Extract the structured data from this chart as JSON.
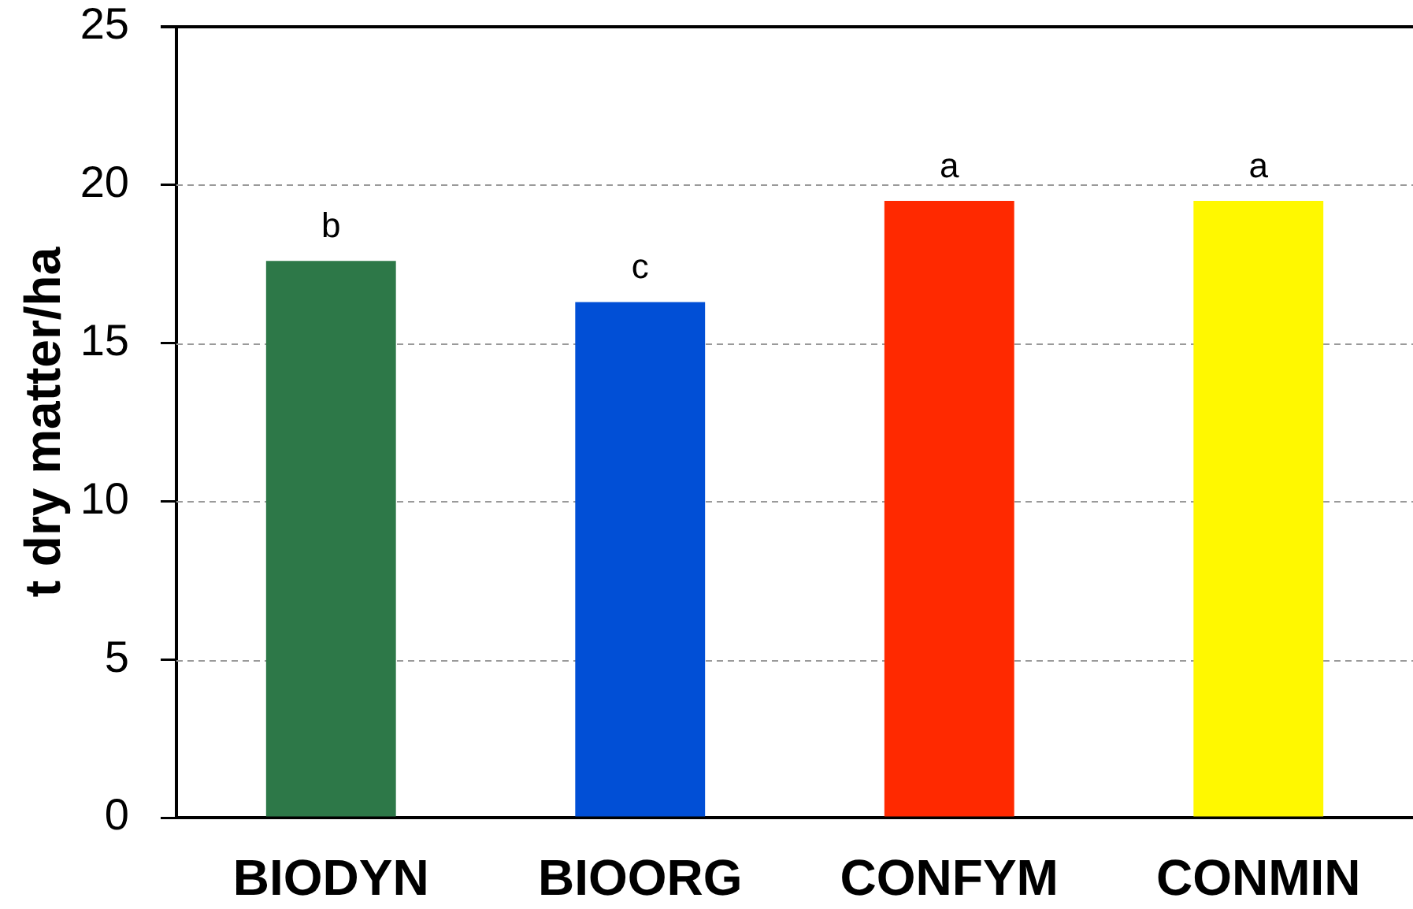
{
  "chart_data": {
    "type": "bar",
    "ylabel": "t dry matter/ha",
    "categories": [
      "BIODYN",
      "BIOORG",
      "CONFYM",
      "CONMIN"
    ],
    "values": [
      17.6,
      16.3,
      19.5,
      19.5
    ],
    "colors": [
      "#2d7848",
      "#014fd6",
      "#ff2900",
      "#fff800"
    ],
    "ylim": [
      0,
      25
    ],
    "yticks": [
      0,
      5,
      10,
      15,
      20,
      25
    ],
    "grid": "y",
    "annotations": [
      {
        "text": "b",
        "x": "BIODYN",
        "y": 17.6
      },
      {
        "text": "c",
        "x": "BIOORG",
        "y": 16.3
      },
      {
        "text": "a",
        "x": "CONFYM",
        "y": 19.5
      },
      {
        "text": "a",
        "x": "CONMIN",
        "y": 19.5
      }
    ]
  }
}
